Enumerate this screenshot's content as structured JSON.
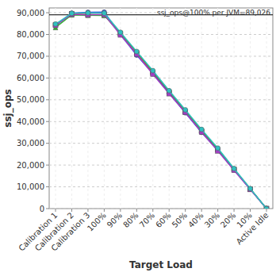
{
  "chart_data": {
    "type": "line",
    "x_label": "Target Load",
    "y_label": "ssj_ops",
    "annotation": "ssj_ops@100% per JVM=89,026",
    "reference_value": 89026,
    "categories": [
      "Calibration 1",
      "Calibration 2",
      "Calibration 3",
      "100%",
      "90%",
      "80%",
      "70%",
      "60%",
      "50%",
      "40%",
      "30%",
      "20%",
      "10%",
      "Active Idle"
    ],
    "series": [
      {
        "color": "#e03030",
        "marker": "square",
        "values": [
          84500,
          89500,
          89200,
          89000,
          80500,
          71500,
          62500,
          53500,
          44500,
          35500,
          27000,
          18000,
          9000,
          0
        ]
      },
      {
        "color": "#3050e0",
        "marker": "circle",
        "values": [
          84000,
          89800,
          90200,
          90300,
          80000,
          70500,
          62000,
          53000,
          44000,
          35000,
          26800,
          17800,
          8900,
          0
        ]
      },
      {
        "color": "#30b030",
        "marker": "triangle",
        "values": [
          83200,
          89000,
          88800,
          88700,
          80800,
          72000,
          63000,
          54000,
          45000,
          36000,
          27500,
          18200,
          9100,
          0
        ]
      },
      {
        "color": "#a040c0",
        "marker": "square",
        "values": [
          84200,
          89300,
          89000,
          89200,
          79800,
          71000,
          61800,
          52800,
          44200,
          35200,
          26500,
          17600,
          8800,
          0
        ]
      },
      {
        "color": "#30c0c0",
        "marker": "circle",
        "values": [
          84800,
          89700,
          89900,
          89800,
          81000,
          72200,
          63400,
          54200,
          45400,
          36400,
          27800,
          18400,
          9200,
          0
        ]
      }
    ],
    "ylim": [
      0,
      92200
    ],
    "yticks": [
      0,
      {
        "value": 10000,
        "label": "10,000"
      },
      {
        "value": 20000,
        "label": "20,000"
      },
      {
        "value": 30000,
        "label": "30,000"
      },
      {
        "value": 40000,
        "label": "40,000"
      },
      {
        "value": 50000,
        "label": "50,000"
      },
      {
        "value": 60000,
        "label": "60,000"
      },
      {
        "value": 70000,
        "label": "70,000"
      },
      {
        "value": 80000,
        "label": "80,000"
      },
      {
        "value": 90000,
        "label": "90,000"
      }
    ],
    "grid": true
  }
}
